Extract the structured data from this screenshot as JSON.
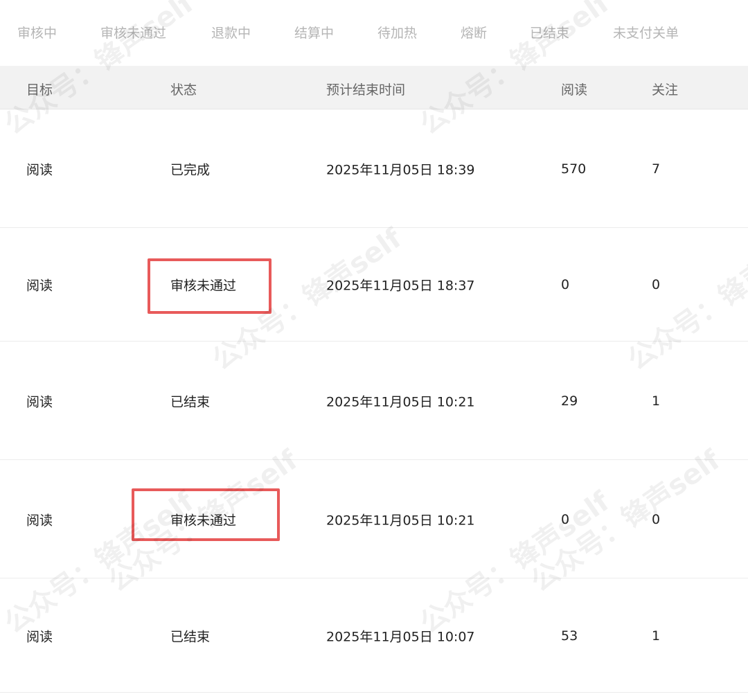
{
  "tabs": [
    "审核中",
    "审核未通过",
    "退款中",
    "结算中",
    "待加热",
    "熔断",
    "已结束",
    "未支付关单"
  ],
  "table": {
    "headers": [
      "目标",
      "状态",
      "预计结束时间",
      "阅读",
      "关注"
    ],
    "rows": [
      [
        "阅读",
        "已完成",
        "2025年11月05日 18:39",
        "570",
        "7"
      ],
      [
        "阅读",
        "审核未通过",
        "2025年11月05日 18:37",
        "0",
        "0"
      ],
      [
        "阅读",
        "已结束",
        "2025年11月05日 10:21",
        "29",
        "1"
      ],
      [
        "阅读",
        "审核未通过",
        "2025年11月05日 10:21",
        "0",
        "0"
      ],
      [
        "阅读",
        "已结束",
        "2025年11月05日 10:07",
        "53",
        "1"
      ]
    ]
  },
  "highlight_color": "#e85a5a",
  "watermark": "公众号：锋声self"
}
